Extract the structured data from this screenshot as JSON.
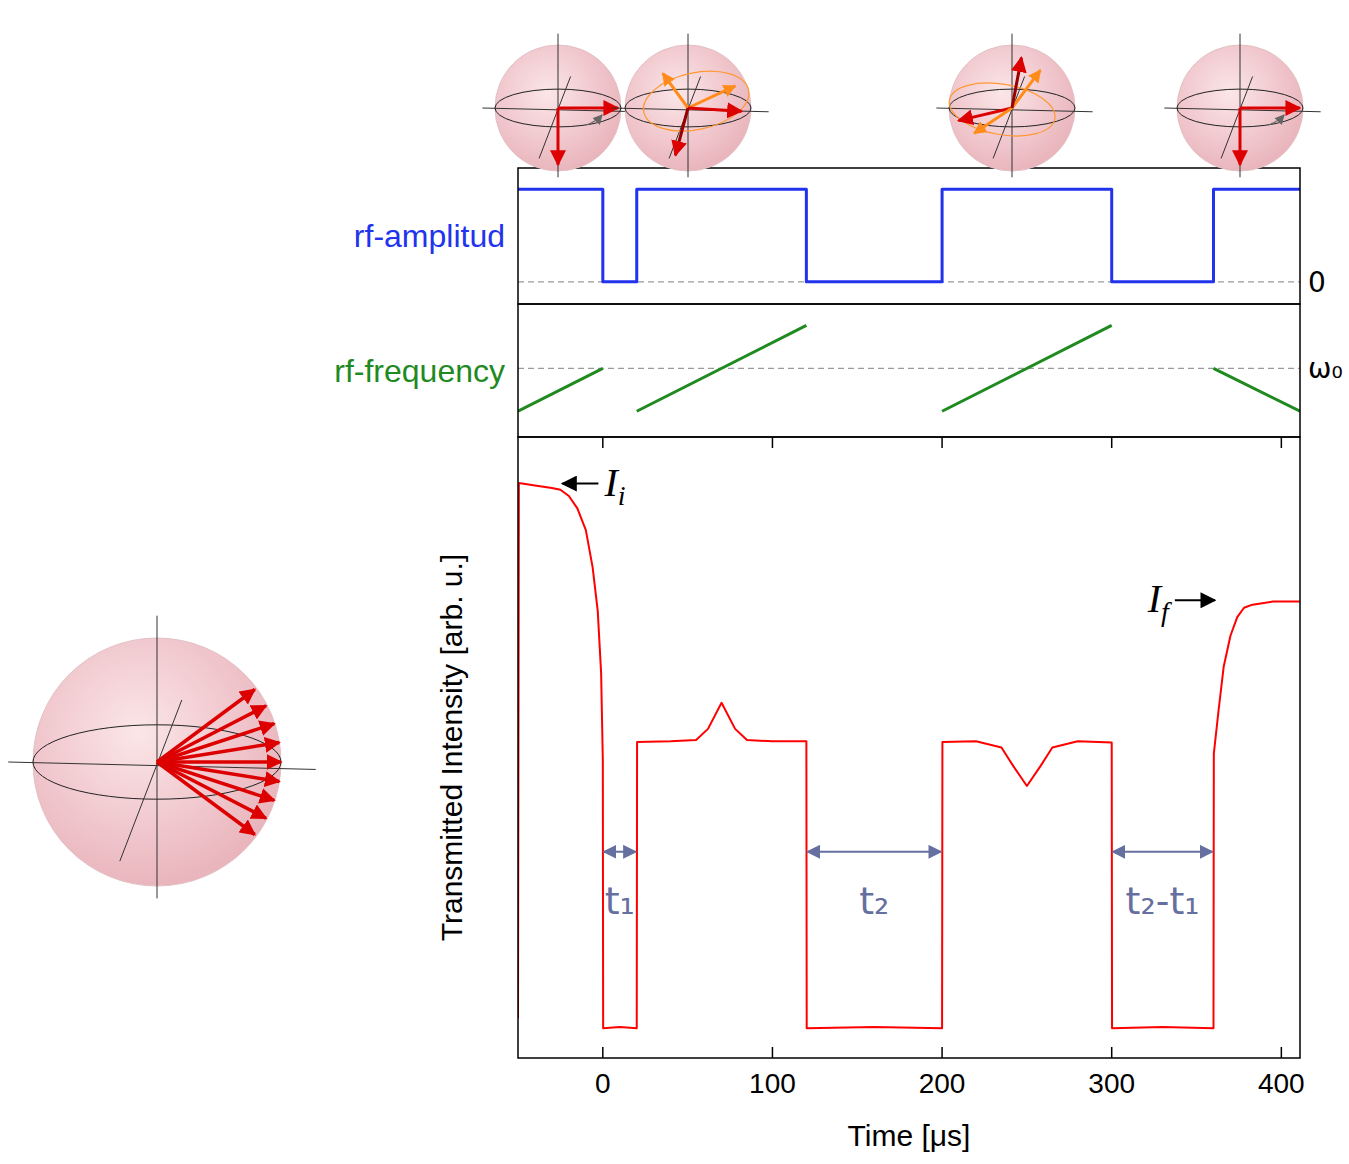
{
  "chart_data": [
    {
      "type": "line",
      "ylabel": "rf-amplitud",
      "color": "#2233ee",
      "x": [
        -50,
        0,
        0,
        20,
        20,
        120,
        120,
        200,
        200,
        300,
        300,
        360,
        360,
        411
      ],
      "values": [
        1,
        1,
        0,
        0,
        1,
        1,
        0,
        0,
        1,
        1,
        0,
        0,
        1,
        1
      ],
      "xlim": [
        -50,
        411
      ],
      "ylim": [
        -0.24,
        1.23
      ],
      "yticks": [
        0
      ],
      "grid": true,
      "tick_labels": "y",
      "line_style": "solid"
    },
    {
      "type": "line",
      "ylabel": "rf-frequency",
      "color": "#1f8a1f",
      "x": [
        -50,
        0,
        0,
        20,
        120,
        120,
        200,
        300,
        300,
        360,
        411
      ],
      "values": [
        -1,
        0,
        null,
        -1,
        1,
        null,
        -1,
        1,
        null,
        0,
        -1
      ],
      "xlim": [
        -50,
        411
      ],
      "ylim": [
        -1.6,
        1.5
      ],
      "yticks": [
        {
          "value": 0,
          "label": "ω₀"
        }
      ],
      "grid": true,
      "tick_labels": "y",
      "line_style": "solid"
    },
    {
      "type": "line",
      "xlabel": "Time [μs]",
      "ylabel": "Transmitted Intensity [arb. u.]",
      "color": "#ff0000",
      "x": [
        -50,
        -49.5,
        -40,
        -30,
        -25,
        -20,
        -15,
        -10,
        -6,
        -3,
        -1,
        0,
        0.2,
        10,
        20,
        20.2,
        40,
        55,
        62,
        70,
        78,
        85,
        100,
        120,
        120.2,
        160,
        200,
        200.2,
        220,
        235,
        242,
        250,
        258,
        265,
        280,
        300,
        300.2,
        330,
        360,
        360.2,
        363,
        366,
        370,
        374,
        378,
        383,
        395,
        411
      ],
      "values": [
        0.064,
        0.926,
        0.922,
        0.918,
        0.915,
        0.905,
        0.885,
        0.85,
        0.79,
        0.72,
        0.62,
        0.48,
        0.048,
        0.05,
        0.048,
        0.509,
        0.51,
        0.512,
        0.53,
        0.572,
        0.53,
        0.512,
        0.51,
        0.51,
        0.048,
        0.05,
        0.048,
        0.509,
        0.51,
        0.5,
        0.47,
        0.438,
        0.47,
        0.5,
        0.51,
        0.508,
        0.048,
        0.05,
        0.048,
        0.49,
        0.56,
        0.63,
        0.68,
        0.71,
        0.725,
        0.73,
        0.735,
        0.735
      ],
      "xlim": [
        -50,
        411
      ],
      "ylim": [
        0,
        1
      ],
      "xticks": [
        0,
        100,
        200,
        300,
        400
      ],
      "tick_labels": "x",
      "annotations": [
        {
          "text": "I",
          "sub": "i",
          "x": -25,
          "y": 0.925
        },
        {
          "text": "I",
          "sub": "f",
          "x": 362,
          "y": 0.737
        }
      ],
      "spans": [
        {
          "label": "t₁",
          "x0": 0,
          "x1": 20,
          "y": 0.332
        },
        {
          "label": "t₂",
          "x0": 120,
          "x1": 200,
          "y": 0.332
        },
        {
          "label": "t₂-t₁",
          "x0": 300,
          "x1": 360,
          "y": 0.332
        }
      ]
    }
  ]
}
